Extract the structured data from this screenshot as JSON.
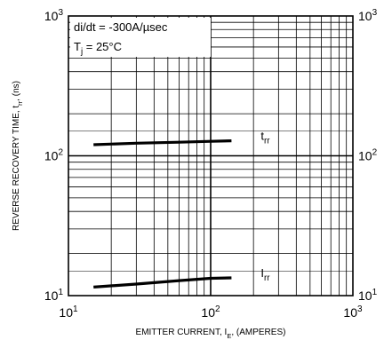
{
  "chart_data": {
    "type": "line",
    "x_scale": "log",
    "y_scale": "log",
    "xlim": [
      10,
      1000
    ],
    "ylim": [
      10,
      1000
    ],
    "grid": true,
    "xlabel_parts": [
      "EMITTER CURRENT, I",
      "E",
      ", (AMPERES)"
    ],
    "ylabel_parts": [
      "REVERSE RECOVERY TIME, t",
      "rr",
      ", (ns)"
    ],
    "x_ticks": [
      {
        "base": "10",
        "exp": "1",
        "value": 10
      },
      {
        "base": "10",
        "exp": "2",
        "value": 100
      },
      {
        "base": "10",
        "exp": "3",
        "value": 1000
      }
    ],
    "y_ticks": [
      {
        "base": "10",
        "exp": "1",
        "value": 10
      },
      {
        "base": "10",
        "exp": "2",
        "value": 100
      },
      {
        "base": "10",
        "exp": "3",
        "value": 1000
      }
    ],
    "annotations": {
      "line1": "di/dt = -300A/µsec",
      "line2_parts": [
        "T",
        "j",
        " = 25°C"
      ]
    },
    "series": [
      {
        "name_base": "t",
        "name_sub": "rr",
        "points": [
          [
            15,
            120
          ],
          [
            30,
            123
          ],
          [
            60,
            125
          ],
          [
            100,
            127
          ],
          [
            140,
            128
          ]
        ]
      },
      {
        "name_base": "I",
        "name_sub": "rr",
        "points": [
          [
            15,
            11.5
          ],
          [
            30,
            12.1
          ],
          [
            60,
            12.8
          ],
          [
            100,
            13.3
          ],
          [
            140,
            13.4
          ]
        ]
      }
    ]
  }
}
